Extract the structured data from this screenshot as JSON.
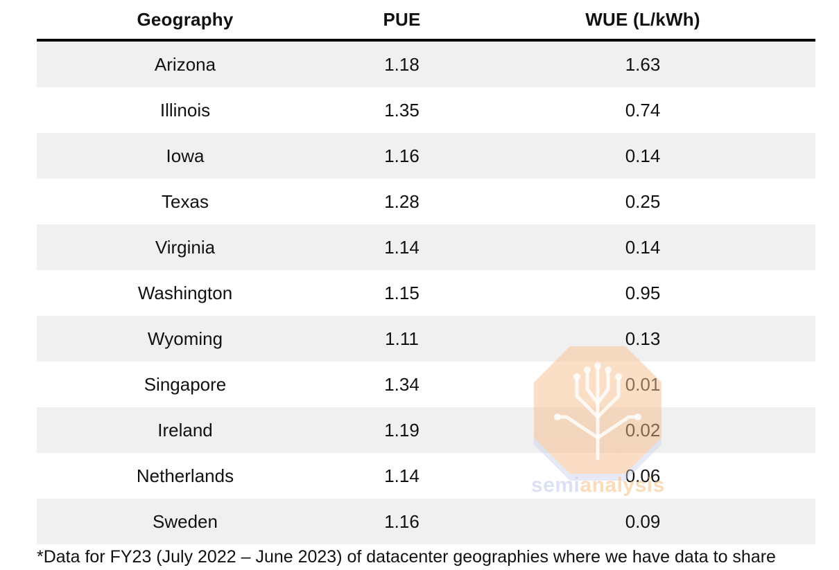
{
  "chart_data": {
    "type": "table",
    "columns": [
      "Geography",
      "PUE",
      "WUE (L/kWh)"
    ],
    "rows": [
      [
        "Arizona",
        "1.18",
        "1.63"
      ],
      [
        "Illinois",
        "1.35",
        "0.74"
      ],
      [
        "Iowa",
        "1.16",
        "0.14"
      ],
      [
        "Texas",
        "1.28",
        "0.25"
      ],
      [
        "Virginia",
        "1.14",
        "0.14"
      ],
      [
        "Washington",
        "1.15",
        "0.95"
      ],
      [
        "Wyoming",
        "1.11",
        "0.13"
      ],
      [
        "Singapore",
        "1.34",
        "0.01"
      ],
      [
        "Ireland",
        "1.19",
        "0.02"
      ],
      [
        "Netherlands",
        "1.14",
        "0.06"
      ],
      [
        "Sweden",
        "1.16",
        "0.09"
      ]
    ],
    "footnote": "*Data for FY23 (July 2022 – June 2023) of datacenter geographies where we have data to share"
  },
  "watermark": {
    "text_part1": "semi",
    "text_part2": "analysis",
    "icon": "circuit-tree-icon"
  },
  "colors": {
    "row_shade": "#f0f0f0",
    "header_rule": "#000000"
  }
}
